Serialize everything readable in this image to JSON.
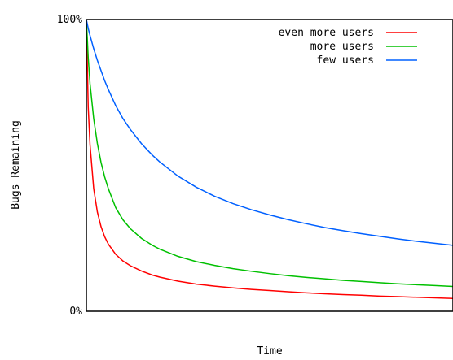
{
  "chart_data": {
    "type": "line",
    "title": "",
    "xlabel": "Time",
    "ylabel": "Bugs Remaining",
    "ylim": [
      0,
      100
    ],
    "y_ticks": [
      "0%",
      "100%"
    ],
    "x_ticks": [],
    "grid": false,
    "legend_position": "top-right",
    "x": [
      0,
      0.5,
      1,
      2,
      3,
      4,
      5,
      6,
      8,
      10,
      12,
      15,
      18,
      20,
      25,
      30,
      35,
      40,
      45,
      50,
      55,
      60,
      65,
      70,
      75,
      80,
      85,
      90,
      95,
      100
    ],
    "series": [
      {
        "name": "even more users",
        "color": "#ff0000",
        "values": [
          100,
          70,
          57,
          42,
          34,
          29,
          25.5,
          23,
          19.5,
          17.2,
          15.6,
          13.8,
          12.4,
          11.7,
          10.3,
          9.3,
          8.6,
          8,
          7.5,
          7.1,
          6.7,
          6.3,
          6,
          5.7,
          5.5,
          5.2,
          5,
          4.8,
          4.6,
          4.4
        ]
      },
      {
        "name": "more users",
        "color": "#00c000",
        "values": [
          100,
          87,
          78,
          66,
          57.5,
          51,
          46,
          42,
          35.5,
          31.3,
          28.3,
          25,
          22.6,
          21.3,
          18.8,
          17,
          15.7,
          14.6,
          13.7,
          12.9,
          12.2,
          11.6,
          11.1,
          10.6,
          10.2,
          9.8,
          9.4,
          9.1,
          8.8,
          8.5
        ]
      },
      {
        "name": "few users",
        "color": "#0060ff",
        "values": [
          100,
          97,
          94.5,
          90,
          86,
          82.5,
          79,
          76,
          70.5,
          66,
          62.3,
          57.5,
          53.5,
          51.2,
          46.3,
          42.5,
          39.4,
          36.9,
          34.8,
          33,
          31.4,
          30,
          28.7,
          27.6,
          26.6,
          25.7,
          24.8,
          24,
          23.3,
          22.6
        ]
      }
    ]
  }
}
